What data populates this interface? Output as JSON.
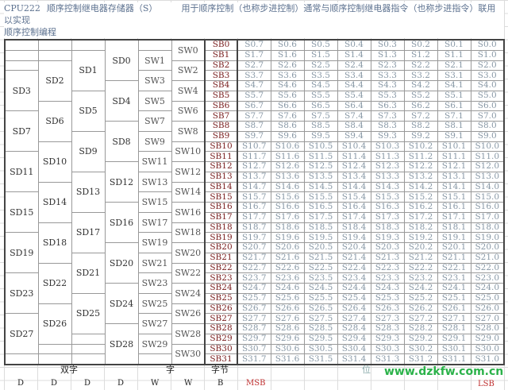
{
  "title": {
    "cpu": "CPU222",
    "name": "顺序控制继电器存储器（S）",
    "description": "用于顺序控制（也称步进控制）通常与顺序控制继电器指令（也称步进指令）联用以实现",
    "description_cont": "顺序控制编程"
  },
  "colors": {
    "byte_text": "#7a2020",
    "bit_text": "#8898a6",
    "msb": "#c03030",
    "watermark": "#2bb24a"
  },
  "double_word_columns": [
    [
      "SD3",
      "SD7",
      "SD11",
      "SD15",
      "SD19",
      "SD23",
      "SD27"
    ],
    [
      "SD2",
      "SD6",
      "SD10",
      "SD14",
      "SD18",
      "SD22",
      "SD26"
    ],
    [
      "SD1",
      "SD5",
      "SD9",
      "SD13",
      "SD17",
      "SD21",
      "SD25"
    ],
    [
      "SD0",
      "SD4",
      "SD8",
      "SD12",
      "SD16",
      "SD20",
      "SD24",
      "SD28"
    ]
  ],
  "word_columns": [
    [
      "SW1",
      "SW3",
      "SW5",
      "SW7",
      "SW9",
      "SW11",
      "SW13",
      "SW15",
      "SW17",
      "SW19",
      "SW21",
      "SW23",
      "SW25",
      "SW27",
      "SW29"
    ],
    [
      "SW0",
      "SW2",
      "SW4",
      "SW6",
      "SW8",
      "SW10",
      "SW12",
      "SW14",
      "SW16",
      "SW18",
      "SW20",
      "SW22",
      "SW24",
      "SW26",
      "SW28",
      "SW30"
    ]
  ],
  "rows": [
    {
      "byte": "SB0",
      "bits": [
        "S0.7",
        "S0.6",
        "S0.5",
        "S0.4",
        "S0.3",
        "S0.2",
        "S0.1",
        "S0.0"
      ]
    },
    {
      "byte": "SB1",
      "bits": [
        "S1.7",
        "S1.6",
        "S1.5",
        "S1.4",
        "S1.3",
        "S1.2",
        "S1.1",
        "S1.0"
      ]
    },
    {
      "byte": "SB2",
      "bits": [
        "S2.7",
        "S2.6",
        "S2.5",
        "S2.4",
        "S2.3",
        "S2.2",
        "S2.1",
        "S2.0"
      ]
    },
    {
      "byte": "SB3",
      "bits": [
        "S3.7",
        "S3.6",
        "S3.5",
        "S3.4",
        "S3.3",
        "S3.2",
        "S3.1",
        "S3.0"
      ]
    },
    {
      "byte": "SB4",
      "bits": [
        "S4.7",
        "S4.6",
        "S4.5",
        "S4.4",
        "S4.3",
        "S4.2",
        "S4.1",
        "S4.0"
      ]
    },
    {
      "byte": "SB5",
      "bits": [
        "S5.7",
        "S5.6",
        "S5.5",
        "S5.4",
        "S5.3",
        "S5.2",
        "S5.1",
        "S5.0"
      ]
    },
    {
      "byte": "SB6",
      "bits": [
        "S6.7",
        "S6.6",
        "S6.5",
        "S6.4",
        "S6.3",
        "S6.2",
        "S6.1",
        "S6.0"
      ]
    },
    {
      "byte": "SB7",
      "bits": [
        "S7.7",
        "S7.6",
        "S7.5",
        "S7.4",
        "S7.3",
        "S7.2",
        "S7.1",
        "S7.0"
      ]
    },
    {
      "byte": "SB8",
      "bits": [
        "S8.7",
        "S8.6",
        "S8.5",
        "S8.4",
        "S8.3",
        "S8.2",
        "S8.1",
        "S8.0"
      ]
    },
    {
      "byte": "SB9",
      "bits": [
        "S9.7",
        "S9.6",
        "S9.5",
        "S9.4",
        "S9.3",
        "S9.2",
        "S9.1",
        "S9.0"
      ]
    },
    {
      "byte": "SB10",
      "bits": [
        "S10.7",
        "S10.6",
        "S10.5",
        "S10.4",
        "S10.3",
        "S10.2",
        "S10.1",
        "S10.0"
      ]
    },
    {
      "byte": "SB11",
      "bits": [
        "S11.7",
        "S11.6",
        "S11.5",
        "S11.4",
        "S11.3",
        "S11.2",
        "S11.1",
        "S11.0"
      ]
    },
    {
      "byte": "SB12",
      "bits": [
        "S12.7",
        "S12.6",
        "S12.5",
        "S12.4",
        "S12.3",
        "S12.2",
        "S12.1",
        "S12.0"
      ]
    },
    {
      "byte": "SB13",
      "bits": [
        "S13.7",
        "S13.6",
        "S13.5",
        "S13.4",
        "S13.3",
        "S13.2",
        "S13.1",
        "S13.0"
      ]
    },
    {
      "byte": "SB14",
      "bits": [
        "S14.7",
        "S14.6",
        "S14.5",
        "S14.4",
        "S14.3",
        "S14.2",
        "S14.1",
        "S14.0"
      ]
    },
    {
      "byte": "SB15",
      "bits": [
        "S15.7",
        "S15.6",
        "S15.5",
        "S15.4",
        "S15.3",
        "S15.2",
        "S15.1",
        "S15.0"
      ]
    },
    {
      "byte": "SB16",
      "bits": [
        "S16.7",
        "S16.6",
        "S16.5",
        "S16.4",
        "S16.3",
        "S16.2",
        "S16.1",
        "S16.0"
      ]
    },
    {
      "byte": "SB17",
      "bits": [
        "S17.7",
        "S17.6",
        "S17.5",
        "S17.4",
        "S17.3",
        "S17.2",
        "S17.1",
        "S17.0"
      ]
    },
    {
      "byte": "SB18",
      "bits": [
        "S18.7",
        "S18.6",
        "S18.5",
        "S18.4",
        "S18.3",
        "S18.2",
        "S18.1",
        "S18.0"
      ]
    },
    {
      "byte": "SB19",
      "bits": [
        "S19.7",
        "S19.6",
        "S19.5",
        "S19.4",
        "S19.3",
        "S19.2",
        "S19.1",
        "S19.0"
      ]
    },
    {
      "byte": "SB20",
      "bits": [
        "S20.7",
        "S20.6",
        "S20.5",
        "S20.4",
        "S20.3",
        "S20.2",
        "S20.1",
        "S20.0"
      ]
    },
    {
      "byte": "SB21",
      "bits": [
        "S21.7",
        "S21.6",
        "S21.5",
        "S21.4",
        "S21.3",
        "S21.2",
        "S21.1",
        "S21.0"
      ]
    },
    {
      "byte": "SB22",
      "bits": [
        "S22.7",
        "S22.6",
        "S22.5",
        "S22.4",
        "S22.3",
        "S22.2",
        "S22.1",
        "S22.0"
      ]
    },
    {
      "byte": "SB23",
      "bits": [
        "S23.7",
        "S23.6",
        "S23.5",
        "S23.4",
        "S23.3",
        "S23.2",
        "S23.1",
        "S23.0"
      ]
    },
    {
      "byte": "SB24",
      "bits": [
        "S24.7",
        "S24.6",
        "S24.5",
        "S24.4",
        "S24.3",
        "S24.2",
        "S24.1",
        "S24.0"
      ]
    },
    {
      "byte": "SB25",
      "bits": [
        "S25.7",
        "S25.6",
        "S25.5",
        "S25.4",
        "S25.3",
        "S25.2",
        "S25.1",
        "S25.0"
      ]
    },
    {
      "byte": "SB26",
      "bits": [
        "S26.7",
        "S26.6",
        "S26.5",
        "S26.4",
        "S26.3",
        "S26.2",
        "S26.1",
        "S26.0"
      ]
    },
    {
      "byte": "SB27",
      "bits": [
        "S27.7",
        "S27.6",
        "S27.5",
        "S27.4",
        "S27.3",
        "S27.2",
        "S27.1",
        "S27.0"
      ]
    },
    {
      "byte": "SB28",
      "bits": [
        "S28.7",
        "S28.6",
        "S28.5",
        "S28.4",
        "S28.3",
        "S28.2",
        "S28.1",
        "S28.0"
      ]
    },
    {
      "byte": "SB29",
      "bits": [
        "S29.7",
        "S29.6",
        "S29.5",
        "S29.4",
        "S29.3",
        "S29.2",
        "S29.1",
        "S29.0"
      ]
    },
    {
      "byte": "SB30",
      "bits": [
        "S30.7",
        "S30.6",
        "S30.5",
        "S30.4",
        "S30.3",
        "S30.2",
        "S30.1",
        "S30.0"
      ]
    },
    {
      "byte": "SB31",
      "bits": [
        "S31.7",
        "S31.6",
        "S31.5",
        "S31.4",
        "S31.3",
        "S31.2",
        "S31.1",
        "S31.0"
      ]
    }
  ],
  "footer": {
    "double_word": "双字",
    "word": "字",
    "byte": "字节",
    "bit": "位",
    "types": [
      "D",
      "D",
      "D",
      "D",
      "W",
      "W",
      "B"
    ],
    "msb": "MSB",
    "lsb": "LSB"
  },
  "watermark": "www.dzkfw.com.cn"
}
